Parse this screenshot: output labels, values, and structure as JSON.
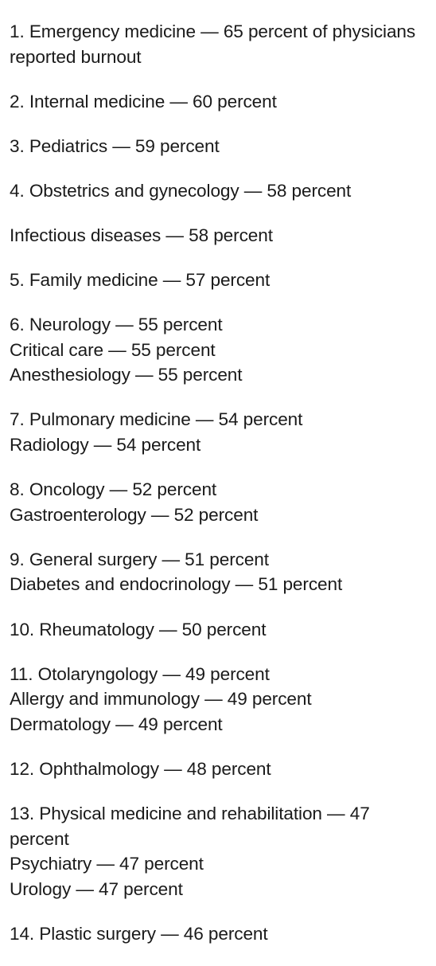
{
  "groups": [
    {
      "lines": [
        "1. Emergency medicine — 65 percent of physicians reported burnout"
      ]
    },
    {
      "lines": [
        "2. Internal medicine — 60 percent"
      ]
    },
    {
      "lines": [
        "3. Pediatrics — 59 percent"
      ]
    },
    {
      "lines": [
        "4. Obstetrics and gynecology — 58 percent"
      ]
    },
    {
      "lines": [
        "Infectious diseases — 58 percent"
      ]
    },
    {
      "lines": [
        "5. Family medicine — 57 percent"
      ]
    },
    {
      "lines": [
        "6. Neurology — 55 percent",
        "Critical care — 55 percent",
        "Anesthesiology — 55 percent"
      ]
    },
    {
      "lines": [
        "7. Pulmonary medicine — 54 percent",
        "Radiology — 54 percent"
      ]
    },
    {
      "lines": [
        "8. Oncology — 52 percent",
        "Gastroenterology — 52 percent"
      ]
    },
    {
      "lines": [
        "9. General surgery — 51 percent",
        "Diabetes and endocrinology — 51 percent"
      ]
    },
    {
      "lines": [
        "10. Rheumatology — 50 percent"
      ]
    },
    {
      "lines": [
        "11. Otolaryngology — 49 percent",
        "Allergy and immunology — 49 percent",
        "Dermatology — 49 percent"
      ]
    },
    {
      "lines": [
        "12. Ophthalmology — 48 percent"
      ]
    },
    {
      "lines": [
        "13. Physical medicine and rehabilitation — 47 percent",
        "Psychiatry — 47 percent",
        "Urology — 47 percent"
      ]
    },
    {
      "lines": [
        "14. Plastic surgery — 46 percent"
      ]
    }
  ]
}
